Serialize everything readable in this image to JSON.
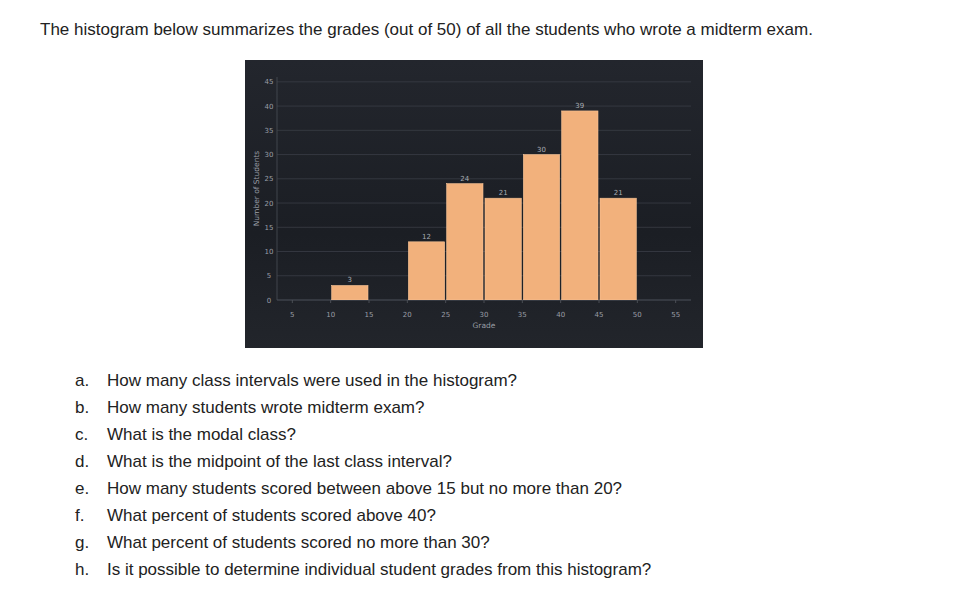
{
  "header": {
    "title": "The histogram below summarizes the grades (out of 50) of all the students who wrote a midterm exam."
  },
  "chart_data": {
    "type": "histogram",
    "x_label": "Grade",
    "y_label": "Number of Students",
    "bins": [
      10,
      15,
      20,
      25,
      30,
      35,
      40,
      45,
      50
    ],
    "values": [
      3,
      0,
      12,
      24,
      21,
      30,
      39,
      21
    ],
    "color": "#f2b17c",
    "xlim": [
      3,
      57
    ],
    "xticks": [
      5,
      10,
      15,
      20,
      25,
      30,
      35,
      40,
      45,
      50,
      55
    ],
    "ylim": [
      0,
      46
    ],
    "yticks": [
      0,
      5,
      10,
      15,
      20,
      25,
      30,
      35,
      40,
      45
    ],
    "grid": true,
    "data_labels": true
  },
  "questions": [
    {
      "letter": "a.",
      "text": "How many class intervals were used in the histogram?"
    },
    {
      "letter": "b.",
      "text": "How many students wrote midterm exam?"
    },
    {
      "letter": "c.",
      "text": "What is the modal class?"
    },
    {
      "letter": "d.",
      "text": "What is the midpoint of the last class interval?"
    },
    {
      "letter": "e.",
      "text": "How many students scored between above 15 but no more than 20?"
    },
    {
      "letter": "f.",
      "text": "What percent of students scored above 40?"
    },
    {
      "letter": "g.",
      "text": "What percent of students scored no more than 30?"
    },
    {
      "letter": "h.",
      "text": "Is it possible to determine individual student grades from this histogram?"
    }
  ]
}
